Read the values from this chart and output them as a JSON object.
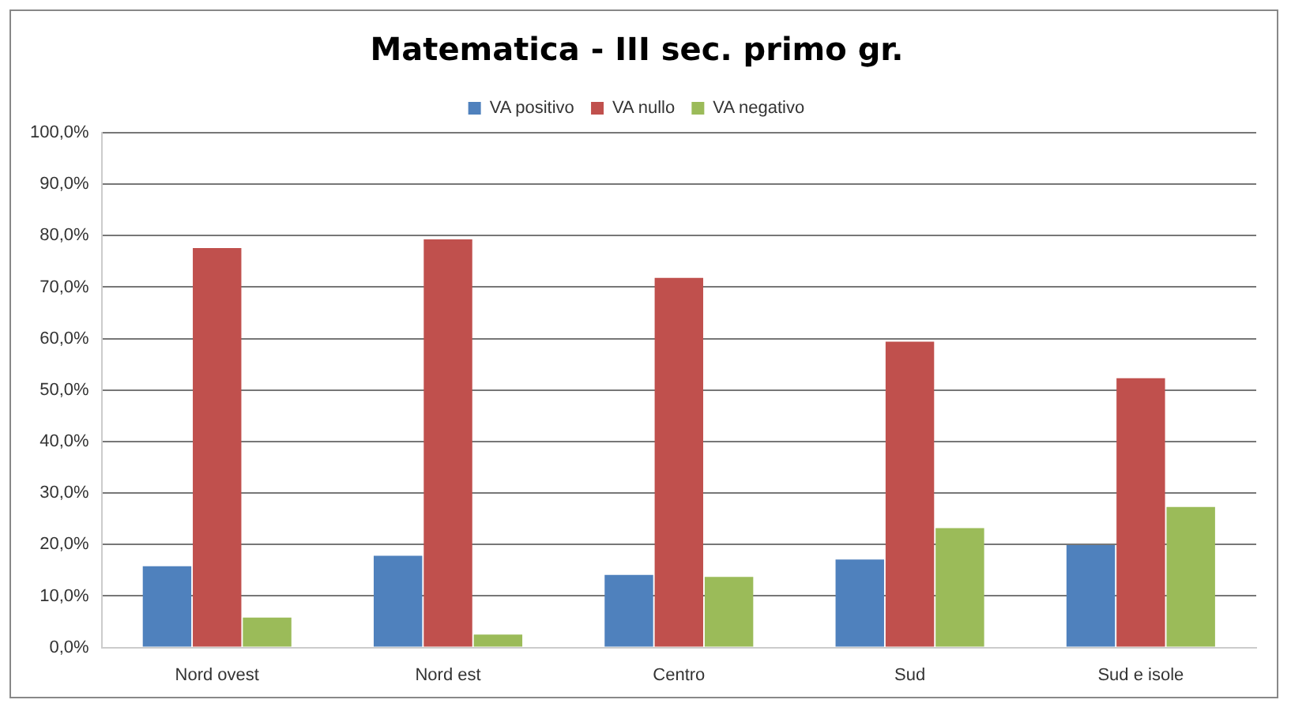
{
  "chart_data": {
    "type": "bar",
    "title": "Matematica - III sec. primo gr.",
    "categories": [
      "Nord ovest",
      "Nord est",
      "Centro",
      "Sud",
      "Sud e isole"
    ],
    "series": [
      {
        "name": "VA positivo",
        "color": "#4f81bd",
        "values": [
          15.8,
          17.8,
          14.1,
          17.1,
          19.9
        ]
      },
      {
        "name": "VA nullo",
        "color": "#c0504d",
        "values": [
          77.6,
          79.3,
          71.8,
          59.4,
          52.3
        ]
      },
      {
        "name": "VA negativo",
        "color": "#9bbb59",
        "values": [
          5.8,
          2.5,
          13.7,
          23.2,
          27.3
        ]
      }
    ],
    "ylim": [
      0,
      100
    ],
    "yticks": [
      {
        "value": 0,
        "label": "0,0%"
      },
      {
        "value": 10,
        "label": "10,0%"
      },
      {
        "value": 20,
        "label": "20,0%"
      },
      {
        "value": 30,
        "label": "30,0%"
      },
      {
        "value": 40,
        "label": "40,0%"
      },
      {
        "value": 50,
        "label": "50,0%"
      },
      {
        "value": 60,
        "label": "60,0%"
      },
      {
        "value": 70,
        "label": "70,0%"
      },
      {
        "value": 80,
        "label": "80,0%"
      },
      {
        "value": 90,
        "label": "90,0%"
      },
      {
        "value": 100,
        "label": "100,0%"
      }
    ],
    "grid": "y",
    "legend": "top"
  }
}
